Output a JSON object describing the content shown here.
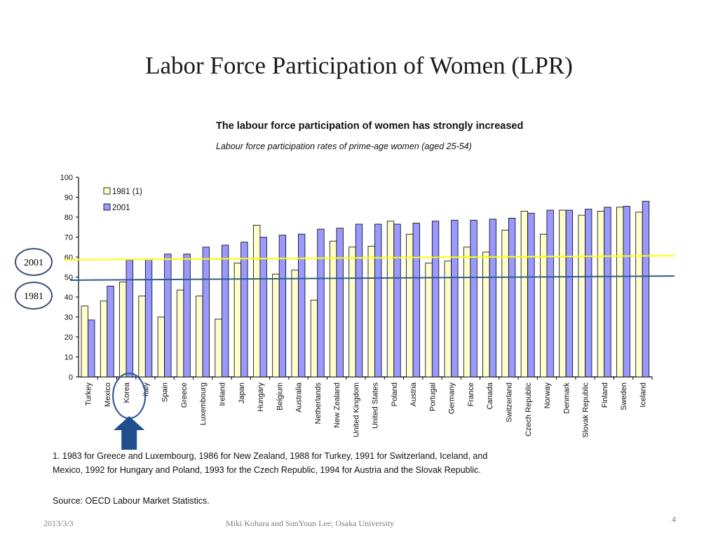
{
  "slide": {
    "title": "Labor Force Participation of Women (LPR)",
    "footer_date": "2013/3/3",
    "footer_authors": "Miki Kohara and SunYoun Lee;  Osaka University",
    "page_number": "4"
  },
  "chart_data": {
    "type": "bar",
    "title": "The labour force participation of women has strongly increased",
    "subtitle": "Labour force participation rates of prime-age women (aged 25-54)",
    "xlabel": "",
    "ylabel": "",
    "ylim": [
      0,
      100
    ],
    "yticks": [
      "0",
      "10",
      "20",
      "30",
      "40",
      "50",
      "60",
      "70",
      "80",
      "90",
      "100"
    ],
    "grid": false,
    "legend_position": "top-left",
    "categories": [
      "Turkey",
      "Mexico",
      "Korea",
      "Italy",
      "Spain",
      "Greece",
      "Luxembourg",
      "Ireland",
      "Japan",
      "Hungary",
      "Belgium",
      "Australia",
      "Netherlands",
      "New Zealand",
      "United Kingdom",
      "United States",
      "Poland",
      "Austria",
      "Portugal",
      "Germany",
      "France",
      "Canada",
      "Switzerland",
      "Czech Republic",
      "Norway",
      "Denmark",
      "Slovak Republic",
      "Finland",
      "Sweden",
      "Iceland"
    ],
    "series": [
      {
        "name": "1981 (1)",
        "color": "#ffffcc",
        "values": [
          35.5,
          38.0,
          47.5,
          40.5,
          30.0,
          43.5,
          40.5,
          29.0,
          57.0,
          76.0,
          51.5,
          53.5,
          38.5,
          68.0,
          65.0,
          65.5,
          78.0,
          71.5,
          57.0,
          58.0,
          65.0,
          62.5,
          73.5,
          83.0,
          71.5,
          83.5,
          81.0,
          83.0,
          85.0,
          82.5
        ]
      },
      {
        "name": "2001",
        "color": "#9999ff",
        "values": [
          28.5,
          45.5,
          58.5,
          59.0,
          61.5,
          61.5,
          65.0,
          66.0,
          67.5,
          70.0,
          71.0,
          71.5,
          74.0,
          74.5,
          76.5,
          76.5,
          76.5,
          77.0,
          78.0,
          78.5,
          78.5,
          79.0,
          79.5,
          82.0,
          83.5,
          83.5,
          84.0,
          85.0,
          85.5,
          88.0
        ]
      }
    ],
    "reference_lines": [
      {
        "label": "2001",
        "value": 59,
        "color": "#ffff00"
      },
      {
        "label": "1981",
        "value": 49,
        "color": "#2e5e8a"
      }
    ],
    "highlight": {
      "category": "Korea",
      "outline_color": "#3a5a9a",
      "arrow_color": "#1f4e8c"
    },
    "note": "1. 1983 for Greece and Luxembourg, 1986 for New Zealand, 1988 for Turkey, 1991 for Switzerland, Iceland, and Mexico, 1992 for Hungary and Poland, 1993 for the Czech Republic, 1994 for Austria and the Slovak Republic.",
    "source": "Source: OECD Labour Market Statistics."
  }
}
